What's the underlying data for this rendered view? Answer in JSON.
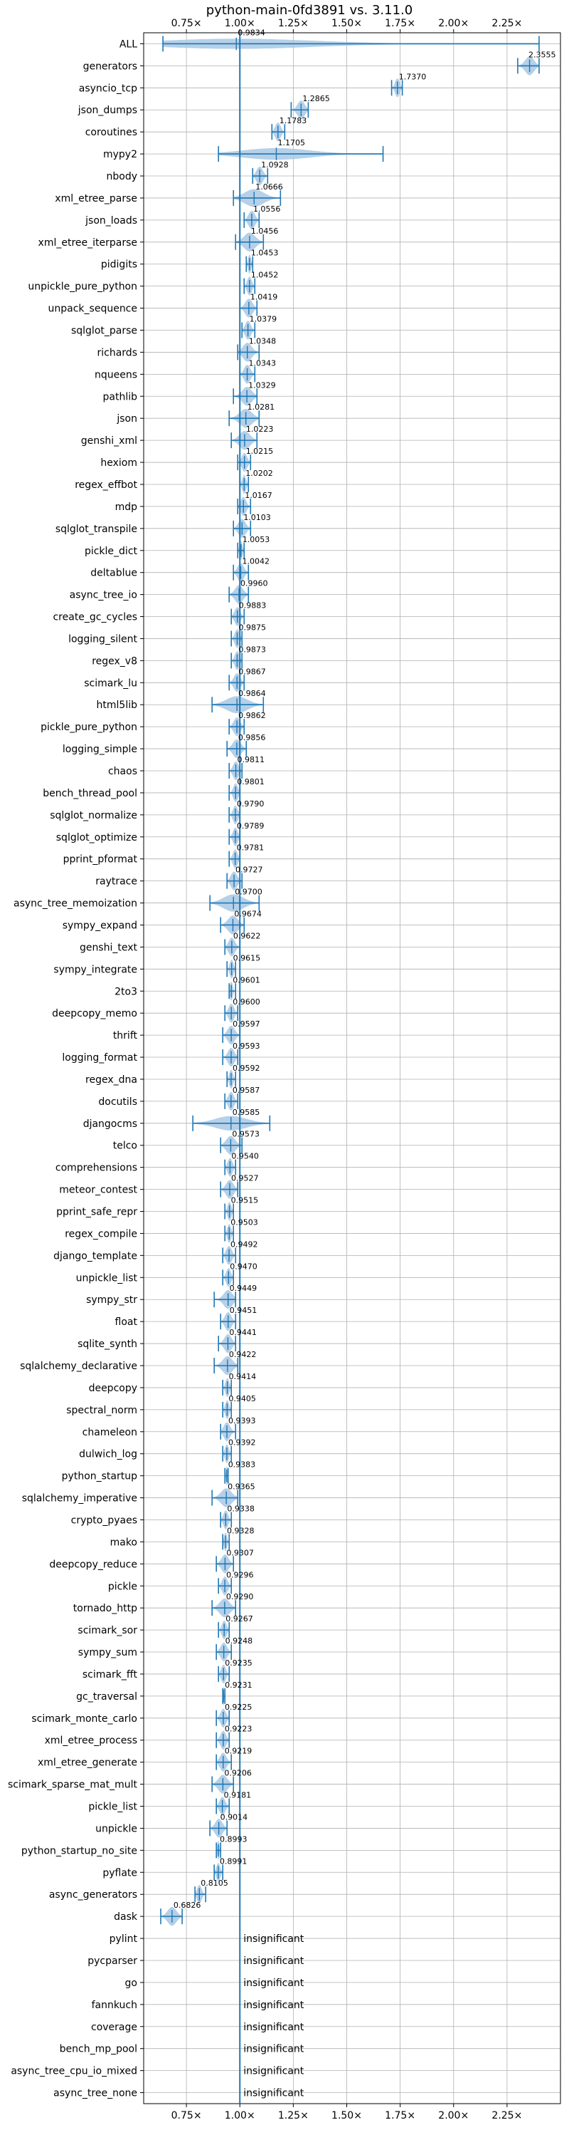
{
  "chart_data": {
    "type": "violin",
    "title": "python-main-0fd3891 vs. 3.11.0",
    "xlabel": "",
    "ylabel": "",
    "xlim": [
      0.55,
      2.5
    ],
    "x_ticks": [
      0.75,
      1.0,
      1.25,
      1.5,
      1.75,
      2.0,
      2.25
    ],
    "x_tick_labels": [
      "0.75×",
      "1.00×",
      "1.25×",
      "1.50×",
      "1.75×",
      "2.00×",
      "2.25×"
    ],
    "reference_line": 1.0,
    "grid": true,
    "benchmarks": [
      {
        "name": "ALL",
        "value": 0.9834,
        "label": "0.9834",
        "low": 0.64,
        "high": 2.4
      },
      {
        "name": "generators",
        "value": 2.3555,
        "label": "2.3555",
        "low": 2.3,
        "high": 2.4
      },
      {
        "name": "asyncio_tcp",
        "value": 1.737,
        "label": "1.7370",
        "low": 1.71,
        "high": 1.76
      },
      {
        "name": "json_dumps",
        "value": 1.2865,
        "label": "1.2865",
        "low": 1.24,
        "high": 1.32
      },
      {
        "name": "coroutines",
        "value": 1.1783,
        "label": "1.1783",
        "low": 1.15,
        "high": 1.21
      },
      {
        "name": "mypy2",
        "value": 1.1705,
        "label": "1.1705",
        "low": 0.9,
        "high": 1.67
      },
      {
        "name": "nbody",
        "value": 1.0928,
        "label": "1.0928",
        "low": 1.06,
        "high": 1.13
      },
      {
        "name": "xml_etree_parse",
        "value": 1.0666,
        "label": "1.0666",
        "low": 0.97,
        "high": 1.19
      },
      {
        "name": "json_loads",
        "value": 1.0556,
        "label": "1.0556",
        "low": 1.02,
        "high": 1.09
      },
      {
        "name": "xml_etree_iterparse",
        "value": 1.0456,
        "label": "1.0456",
        "low": 0.98,
        "high": 1.11
      },
      {
        "name": "pidigits",
        "value": 1.0453,
        "label": "1.0453",
        "low": 1.03,
        "high": 1.06
      },
      {
        "name": "unpickle_pure_python",
        "value": 1.0452,
        "label": "1.0452",
        "low": 1.02,
        "high": 1.07
      },
      {
        "name": "unpack_sequence",
        "value": 1.0419,
        "label": "1.0419",
        "low": 1.0,
        "high": 1.08
      },
      {
        "name": "sqlglot_parse",
        "value": 1.0379,
        "label": "1.0379",
        "low": 1.01,
        "high": 1.07
      },
      {
        "name": "richards",
        "value": 1.0348,
        "label": "1.0348",
        "low": 0.99,
        "high": 1.09
      },
      {
        "name": "nqueens",
        "value": 1.0343,
        "label": "1.0343",
        "low": 1.0,
        "high": 1.07
      },
      {
        "name": "pathlib",
        "value": 1.0329,
        "label": "1.0329",
        "low": 0.97,
        "high": 1.08
      },
      {
        "name": "json",
        "value": 1.0281,
        "label": "1.0281",
        "low": 0.95,
        "high": 1.09
      },
      {
        "name": "genshi_xml",
        "value": 1.0223,
        "label": "1.0223",
        "low": 0.96,
        "high": 1.08
      },
      {
        "name": "hexiom",
        "value": 1.0215,
        "label": "1.0215",
        "low": 0.99,
        "high": 1.05
      },
      {
        "name": "regex_effbot",
        "value": 1.0202,
        "label": "1.0202",
        "low": 1.0,
        "high": 1.04
      },
      {
        "name": "mdp",
        "value": 1.0167,
        "label": "1.0167",
        "low": 0.99,
        "high": 1.05
      },
      {
        "name": "sqlglot_transpile",
        "value": 1.0103,
        "label": "1.0103",
        "low": 0.97,
        "high": 1.05
      },
      {
        "name": "pickle_dict",
        "value": 1.0053,
        "label": "1.0053",
        "low": 0.99,
        "high": 1.02
      },
      {
        "name": "deltablue",
        "value": 1.0042,
        "label": "1.0042",
        "low": 0.97,
        "high": 1.04
      },
      {
        "name": "async_tree_io",
        "value": 0.996,
        "label": "0.9960",
        "low": 0.95,
        "high": 1.04
      },
      {
        "name": "create_gc_cycles",
        "value": 0.9883,
        "label": "0.9883",
        "low": 0.96,
        "high": 1.02
      },
      {
        "name": "logging_silent",
        "value": 0.9875,
        "label": "0.9875",
        "low": 0.96,
        "high": 1.01
      },
      {
        "name": "regex_v8",
        "value": 0.9873,
        "label": "0.9873",
        "low": 0.96,
        "high": 1.01
      },
      {
        "name": "scimark_lu",
        "value": 0.9867,
        "label": "0.9867",
        "low": 0.95,
        "high": 1.02
      },
      {
        "name": "html5lib",
        "value": 0.9864,
        "label": "0.9864",
        "low": 0.87,
        "high": 1.11
      },
      {
        "name": "pickle_pure_python",
        "value": 0.9862,
        "label": "0.9862",
        "low": 0.95,
        "high": 1.02
      },
      {
        "name": "logging_simple",
        "value": 0.9856,
        "label": "0.9856",
        "low": 0.94,
        "high": 1.03
      },
      {
        "name": "chaos",
        "value": 0.9811,
        "label": "0.9811",
        "low": 0.95,
        "high": 1.01
      },
      {
        "name": "bench_thread_pool",
        "value": 0.9801,
        "label": "0.9801",
        "low": 0.95,
        "high": 1.0
      },
      {
        "name": "sqlglot_normalize",
        "value": 0.979,
        "label": "0.9790",
        "low": 0.95,
        "high": 1.0
      },
      {
        "name": "sqlglot_optimize",
        "value": 0.9789,
        "label": "0.9789",
        "low": 0.95,
        "high": 1.0
      },
      {
        "name": "pprint_pformat",
        "value": 0.9781,
        "label": "0.9781",
        "low": 0.95,
        "high": 1.0
      },
      {
        "name": "raytrace",
        "value": 0.9727,
        "label": "0.9727",
        "low": 0.94,
        "high": 1.01
      },
      {
        "name": "async_tree_memoization",
        "value": 0.97,
        "label": "0.9700",
        "low": 0.86,
        "high": 1.09
      },
      {
        "name": "sympy_expand",
        "value": 0.9674,
        "label": "0.9674",
        "low": 0.91,
        "high": 1.02
      },
      {
        "name": "genshi_text",
        "value": 0.9622,
        "label": "0.9622",
        "low": 0.93,
        "high": 1.0
      },
      {
        "name": "sympy_integrate",
        "value": 0.9615,
        "label": "0.9615",
        "low": 0.94,
        "high": 0.98
      },
      {
        "name": "2to3",
        "value": 0.9601,
        "label": "0.9601",
        "low": 0.95,
        "high": 0.98
      },
      {
        "name": "deepcopy_memo",
        "value": 0.96,
        "label": "0.9600",
        "low": 0.93,
        "high": 0.99
      },
      {
        "name": "thrift",
        "value": 0.9597,
        "label": "0.9597",
        "low": 0.92,
        "high": 1.0
      },
      {
        "name": "logging_format",
        "value": 0.9593,
        "label": "0.9593",
        "low": 0.92,
        "high": 0.99
      },
      {
        "name": "regex_dna",
        "value": 0.9592,
        "label": "0.9592",
        "low": 0.94,
        "high": 0.98
      },
      {
        "name": "docutils",
        "value": 0.9587,
        "label": "0.9587",
        "low": 0.93,
        "high": 0.99
      },
      {
        "name": "djangocms",
        "value": 0.9585,
        "label": "0.9585",
        "low": 0.78,
        "high": 1.14
      },
      {
        "name": "telco",
        "value": 0.9573,
        "label": "0.9573",
        "low": 0.91,
        "high": 1.01
      },
      {
        "name": "comprehensions",
        "value": 0.954,
        "label": "0.9540",
        "low": 0.93,
        "high": 0.98
      },
      {
        "name": "meteor_contest",
        "value": 0.9527,
        "label": "0.9527",
        "low": 0.91,
        "high": 0.99
      },
      {
        "name": "pprint_safe_repr",
        "value": 0.9515,
        "label": "0.9515",
        "low": 0.93,
        "high": 0.97
      },
      {
        "name": "regex_compile",
        "value": 0.9503,
        "label": "0.9503",
        "low": 0.93,
        "high": 0.97
      },
      {
        "name": "django_template",
        "value": 0.9492,
        "label": "0.9492",
        "low": 0.92,
        "high": 0.98
      },
      {
        "name": "unpickle_list",
        "value": 0.947,
        "label": "0.9470",
        "low": 0.92,
        "high": 0.97
      },
      {
        "name": "sympy_str",
        "value": 0.9449,
        "label": "0.9449",
        "low": 0.88,
        "high": 0.98
      },
      {
        "name": "float",
        "value": 0.9451,
        "label": "0.9451",
        "low": 0.91,
        "high": 0.98
      },
      {
        "name": "sqlite_synth",
        "value": 0.9441,
        "label": "0.9441",
        "low": 0.9,
        "high": 0.98
      },
      {
        "name": "sqlalchemy_declarative",
        "value": 0.9422,
        "label": "0.9422",
        "low": 0.88,
        "high": 0.99
      },
      {
        "name": "deepcopy",
        "value": 0.9414,
        "label": "0.9414",
        "low": 0.92,
        "high": 0.96
      },
      {
        "name": "spectral_norm",
        "value": 0.9405,
        "label": "0.9405",
        "low": 0.92,
        "high": 0.96
      },
      {
        "name": "chameleon",
        "value": 0.9393,
        "label": "0.9393",
        "low": 0.91,
        "high": 0.98
      },
      {
        "name": "dulwich_log",
        "value": 0.9392,
        "label": "0.9392",
        "low": 0.92,
        "high": 0.96
      },
      {
        "name": "python_startup",
        "value": 0.9383,
        "label": "0.9383",
        "low": 0.93,
        "high": 0.945
      },
      {
        "name": "sqlalchemy_imperative",
        "value": 0.9365,
        "label": "0.9365",
        "low": 0.87,
        "high": 0.99
      },
      {
        "name": "crypto_pyaes",
        "value": 0.9338,
        "label": "0.9338",
        "low": 0.91,
        "high": 0.96
      },
      {
        "name": "mako",
        "value": 0.9328,
        "label": "0.9328",
        "low": 0.92,
        "high": 0.95
      },
      {
        "name": "deepcopy_reduce",
        "value": 0.9307,
        "label": "0.9307",
        "low": 0.89,
        "high": 0.97
      },
      {
        "name": "pickle",
        "value": 0.9296,
        "label": "0.9296",
        "low": 0.9,
        "high": 0.96
      },
      {
        "name": "tornado_http",
        "value": 0.929,
        "label": "0.9290",
        "low": 0.87,
        "high": 0.98
      },
      {
        "name": "scimark_sor",
        "value": 0.9267,
        "label": "0.9267",
        "low": 0.9,
        "high": 0.95
      },
      {
        "name": "sympy_sum",
        "value": 0.9248,
        "label": "0.9248",
        "low": 0.89,
        "high": 0.96
      },
      {
        "name": "scimark_fft",
        "value": 0.9235,
        "label": "0.9235",
        "low": 0.9,
        "high": 0.95
      },
      {
        "name": "gc_traversal",
        "value": 0.9231,
        "label": "0.9231",
        "low": 0.92,
        "high": 0.93
      },
      {
        "name": "scimark_monte_carlo",
        "value": 0.9225,
        "label": "0.9225",
        "low": 0.89,
        "high": 0.95
      },
      {
        "name": "xml_etree_process",
        "value": 0.9223,
        "label": "0.9223",
        "low": 0.89,
        "high": 0.95
      },
      {
        "name": "xml_etree_generate",
        "value": 0.9219,
        "label": "0.9219",
        "low": 0.89,
        "high": 0.96
      },
      {
        "name": "scimark_sparse_mat_mult",
        "value": 0.9206,
        "label": "0.9206",
        "low": 0.87,
        "high": 0.97
      },
      {
        "name": "pickle_list",
        "value": 0.9181,
        "label": "0.9181",
        "low": 0.89,
        "high": 0.95
      },
      {
        "name": "unpickle",
        "value": 0.9014,
        "label": "0.9014",
        "low": 0.86,
        "high": 0.94
      },
      {
        "name": "python_startup_no_site",
        "value": 0.8993,
        "label": "0.8993",
        "low": 0.89,
        "high": 0.91
      },
      {
        "name": "pyflate",
        "value": 0.8991,
        "label": "0.8991",
        "low": 0.88,
        "high": 0.92
      },
      {
        "name": "async_generators",
        "value": 0.8105,
        "label": "0.8105",
        "low": 0.79,
        "high": 0.84
      },
      {
        "name": "dask",
        "value": 0.6826,
        "label": "0.6826",
        "low": 0.63,
        "high": 0.73
      },
      {
        "name": "pylint",
        "value": null,
        "label": "insignificant"
      },
      {
        "name": "pycparser",
        "value": null,
        "label": "insignificant"
      },
      {
        "name": "go",
        "value": null,
        "label": "insignificant"
      },
      {
        "name": "fannkuch",
        "value": null,
        "label": "insignificant"
      },
      {
        "name": "coverage",
        "value": null,
        "label": "insignificant"
      },
      {
        "name": "bench_mp_pool",
        "value": null,
        "label": "insignificant"
      },
      {
        "name": "async_tree_cpu_io_mixed",
        "value": null,
        "label": "insignificant"
      },
      {
        "name": "async_tree_none",
        "value": null,
        "label": "insignificant"
      }
    ]
  },
  "colors": {
    "violin_fill": "#a9c8e4",
    "violin_stroke": "#1f77b4",
    "reference_line": "#1f77b4",
    "grid": "#b0b0b0",
    "axes": "#000000",
    "text": "#000000"
  }
}
